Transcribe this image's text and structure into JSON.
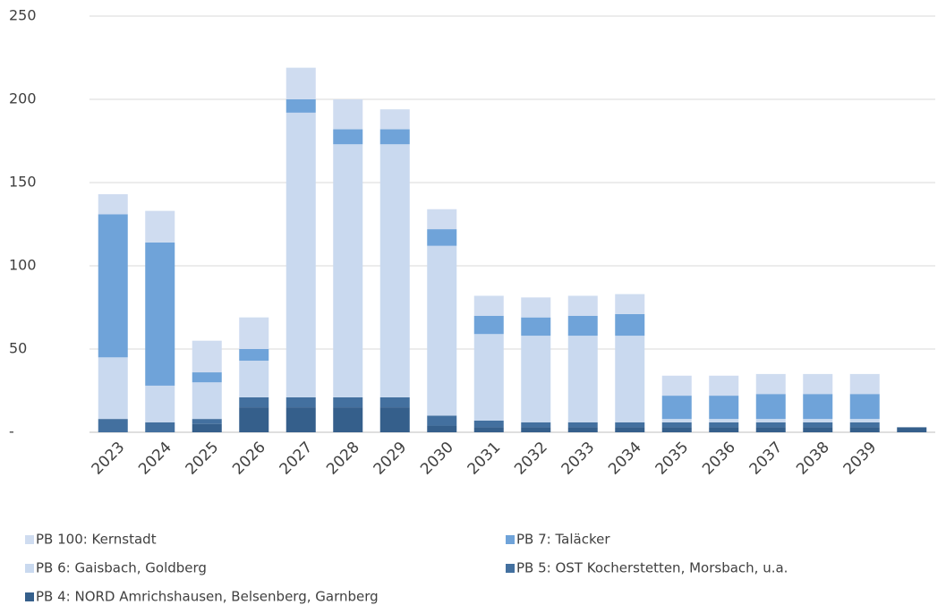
{
  "chart_data": {
    "type": "bar",
    "stacked": true,
    "categories": [
      "2023",
      "2024",
      "2025",
      "2026",
      "2027",
      "2028",
      "2029",
      "2030",
      "2031",
      "2032",
      "2033",
      "2034",
      "2035",
      "2036",
      "2037",
      "2038",
      "2039",
      null
    ],
    "series": [
      {
        "name": "PB 4: NORD Amrichshausen, Belsenberg, Garnberg",
        "color": "#355f8b",
        "values": [
          0,
          0,
          5,
          15,
          15,
          15,
          15,
          4,
          3,
          3,
          3,
          3,
          3,
          3,
          3,
          3,
          3,
          3
        ]
      },
      {
        "name": "PB 5: OST Kocherstetten, Morsbach, u.a.",
        "color": "#43709f",
        "values": [
          8,
          6,
          3,
          6,
          6,
          6,
          6,
          6,
          4,
          3,
          3,
          3,
          3,
          3,
          3,
          3,
          3,
          0
        ]
      },
      {
        "name": "PB 6: Gaisbach, Goldberg",
        "color": "#c9d9ef",
        "values": [
          37,
          22,
          22,
          22,
          171,
          152,
          152,
          102,
          52,
          52,
          52,
          52,
          2,
          2,
          2,
          2,
          2,
          0
        ]
      },
      {
        "name": "PB 7: Taläcker",
        "color": "#6fa3d9",
        "values": [
          86,
          86,
          6,
          7,
          8,
          9,
          9,
          10,
          11,
          11,
          12,
          13,
          14,
          14,
          15,
          15,
          15,
          0
        ]
      },
      {
        "name": "PB 100: Kernstadt",
        "color": "#cfdcf0",
        "values": [
          12,
          19,
          19,
          19,
          19,
          18,
          12,
          12,
          12,
          12,
          12,
          12,
          12,
          12,
          12,
          12,
          12,
          0
        ]
      }
    ],
    "ylim": [
      0,
      250
    ],
    "yticks": [
      {
        "value": 0,
        "label": "-"
      },
      50,
      100,
      150,
      200,
      250
    ],
    "grid": true
  }
}
